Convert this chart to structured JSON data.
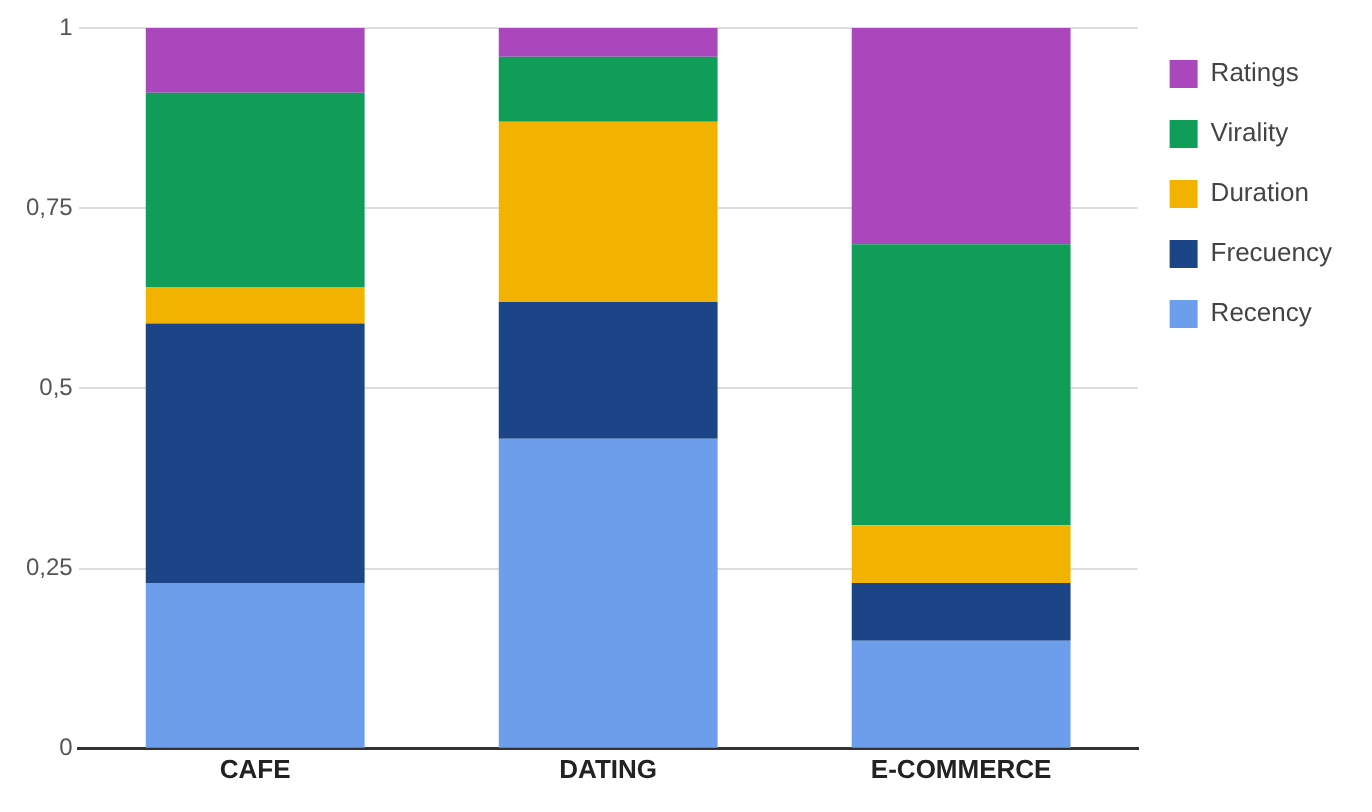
{
  "chart_data": {
    "type": "bar",
    "stacked": true,
    "categories": [
      "CAFE",
      "DATING",
      "E-COMMERCE"
    ],
    "series": [
      {
        "name": "Recency",
        "color": "#6d9eeb",
        "values": [
          0.23,
          0.43,
          0.15
        ]
      },
      {
        "name": "Frecuency",
        "color": "#1c4587",
        "values": [
          0.36,
          0.19,
          0.08
        ]
      },
      {
        "name": "Duration",
        "color": "#f1b300",
        "values": [
          0.05,
          0.25,
          0.08
        ]
      },
      {
        "name": "Virality",
        "color": "#0f9d58",
        "values": [
          0.27,
          0.09,
          0.39
        ]
      },
      {
        "name": "Ratings",
        "color": "#ab47bc",
        "values": [
          0.09,
          0.04,
          0.3
        ]
      }
    ],
    "ylim": [
      0,
      1
    ],
    "yticks": [
      0,
      {
        "value": 0.25,
        "label": "0,25"
      },
      {
        "value": 0.5,
        "label": "0,5"
      },
      {
        "value": 0.75,
        "label": "0,75"
      },
      1
    ],
    "grid": "y",
    "legend": "right"
  }
}
